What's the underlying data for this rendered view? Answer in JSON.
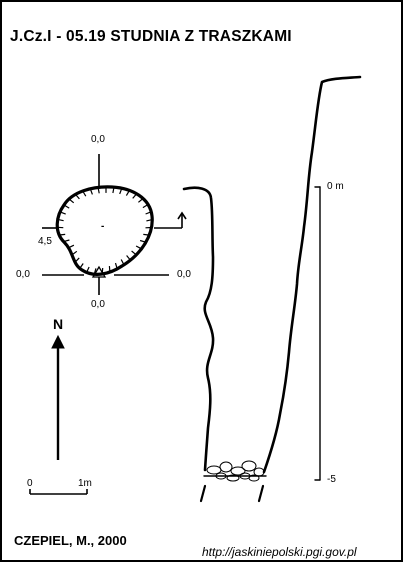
{
  "title": "J.Cz.I - 05.19  STUDNIA Z TRASZKAMI",
  "author": "CZEPIEL, M., 2000",
  "source_url": "http://jaskiniepolski.pgi.gov.pl",
  "plan": {
    "label_top": "0,0",
    "label_bottom": "0,0",
    "label_left": "0,0",
    "label_right": "0,0",
    "label_depth": "4,5",
    "center_mark": "-"
  },
  "north": {
    "label": "N"
  },
  "scale_bar": {
    "label_start": "0",
    "label_end": "1m"
  },
  "section": {
    "depth_top": "0 m",
    "depth_bottom": "-5"
  }
}
